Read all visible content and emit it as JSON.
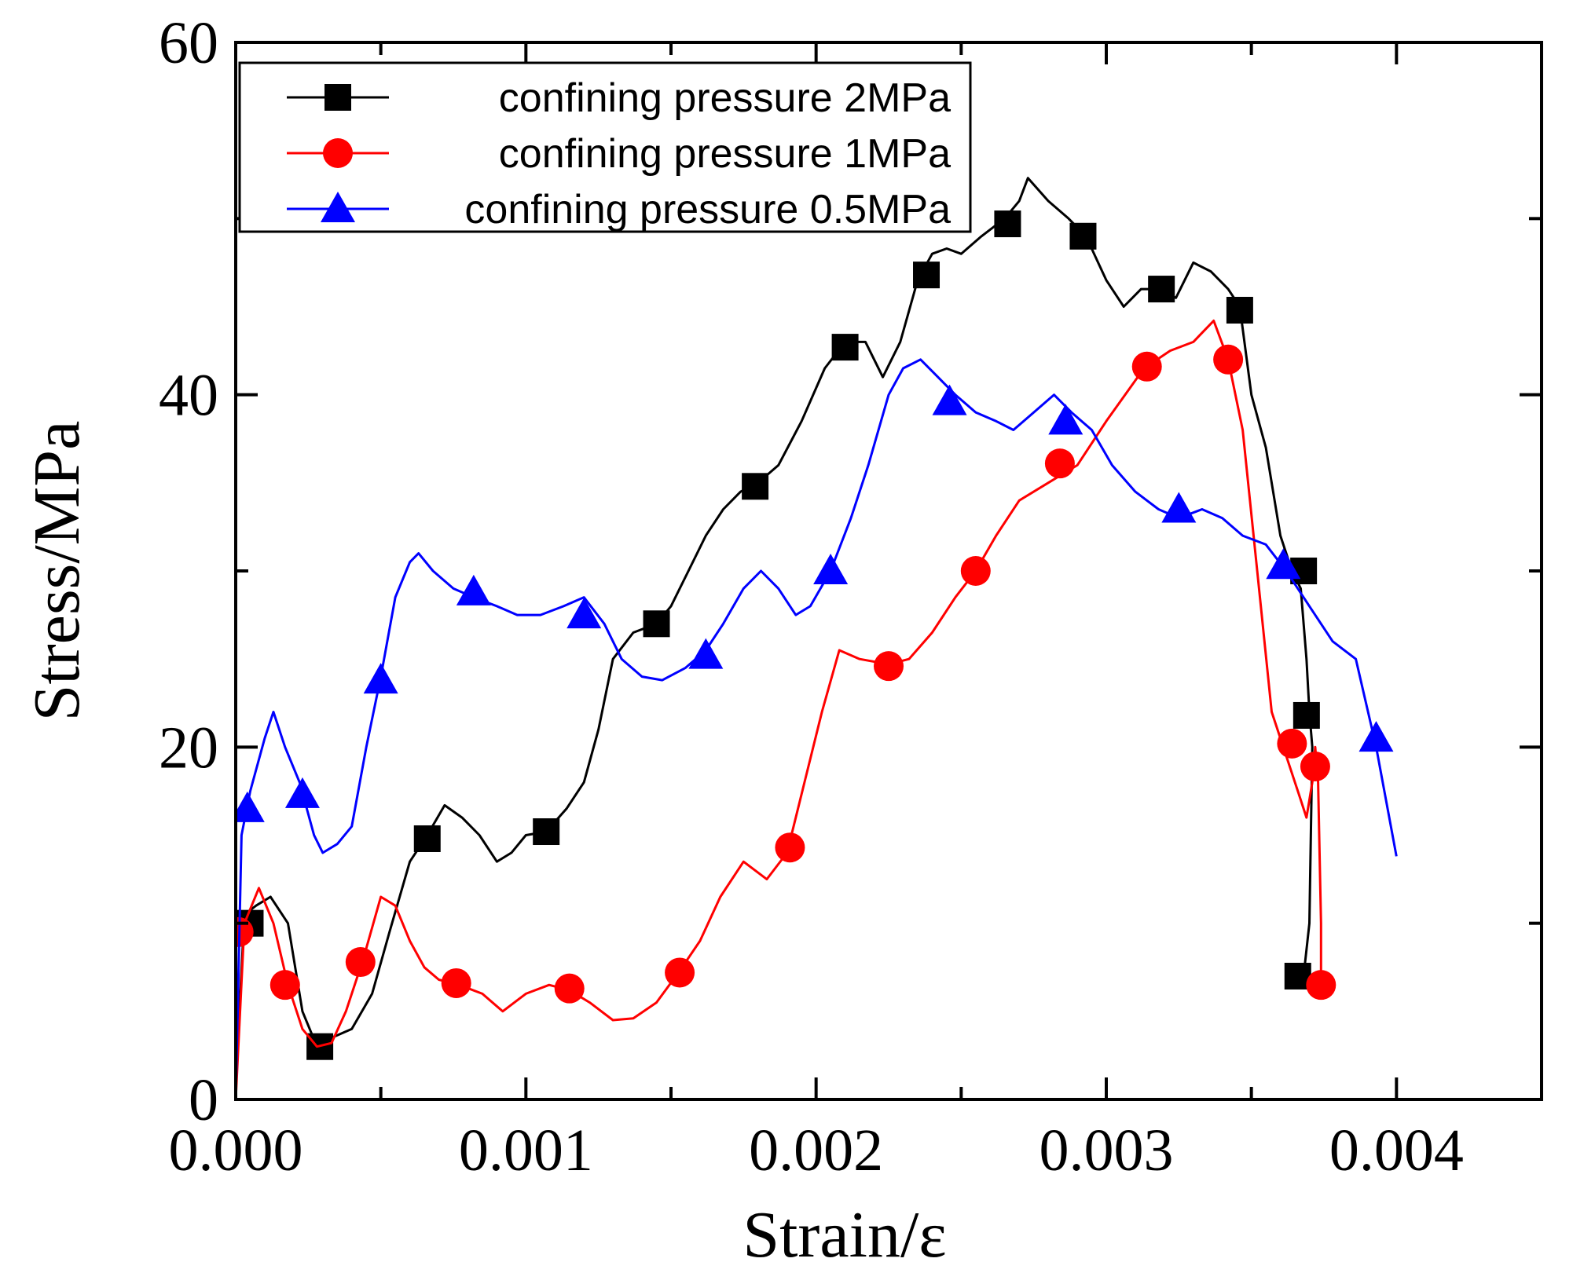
{
  "chart_data": {
    "type": "line",
    "title": "",
    "xlabel": "Strain/ε",
    "ylabel": "Stress/MPa",
    "xlim": [
      0,
      0.0045
    ],
    "ylim": [
      0,
      60
    ],
    "x_ticks": [
      0,
      0.001,
      0.002,
      0.003,
      0.004
    ],
    "x_tick_labels": [
      "0.000",
      "0.001",
      "0.002",
      "0.003",
      "0.004"
    ],
    "y_ticks": [
      0,
      20,
      40,
      60
    ],
    "y_tick_labels": [
      "0",
      "20",
      "40",
      "60"
    ],
    "grid": false,
    "legend_position": "top-left",
    "series": [
      {
        "name": "confining pressure 2MPa",
        "color": "#000000",
        "marker": "square",
        "x": [
          0.0,
          3e-05,
          7e-05,
          0.00012,
          0.00018,
          0.00023,
          0.00028,
          0.00033,
          0.0004,
          0.00047,
          0.00053,
          0.0006,
          0.00066,
          0.00072,
          0.00078,
          0.00084,
          0.0009,
          0.00095,
          0.001,
          0.00107,
          0.00114,
          0.0012,
          0.00125,
          0.0013,
          0.00137,
          0.00145,
          0.0015,
          0.00156,
          0.00162,
          0.00168,
          0.00174,
          0.0018,
          0.00187,
          0.00195,
          0.00203,
          0.0021,
          0.00217,
          0.00223,
          0.00229,
          0.00235,
          0.0024,
          0.00245,
          0.0025,
          0.00257,
          0.00265,
          0.0027,
          0.00273,
          0.0028,
          0.00287,
          0.00293,
          0.003,
          0.00306,
          0.00312,
          0.00318,
          0.00324,
          0.0033,
          0.00336,
          0.00342,
          0.00346,
          0.0035,
          0.00355,
          0.0036,
          0.00364,
          0.00367,
          0.00369,
          0.0037,
          0.00371,
          0.0037,
          0.00368,
          0.00369
        ],
        "y": [
          1.0,
          10.5,
          11.0,
          11.5,
          10.0,
          5.0,
          3.0,
          3.5,
          4.0,
          6.0,
          9.5,
          13.5,
          15.0,
          16.7,
          16.0,
          15.0,
          13.5,
          14.0,
          15.0,
          15.2,
          16.5,
          18.0,
          21.0,
          25.0,
          26.5,
          27.0,
          28.0,
          30.0,
          32.0,
          33.5,
          34.5,
          35.0,
          36.0,
          38.5,
          41.5,
          43.0,
          43.0,
          41.0,
          43.0,
          46.5,
          48.0,
          48.3,
          48.0,
          49.0,
          50.0,
          51.0,
          52.3,
          51.0,
          50.0,
          49.0,
          46.5,
          45.0,
          46.0,
          46.0,
          45.5,
          47.5,
          47.0,
          46.0,
          45.0,
          40.0,
          37.0,
          32.0,
          30.0,
          29.0,
          25.0,
          22.0,
          20.0,
          10.0,
          7.0,
          7.0
        ],
        "marker_x": [
          5e-05,
          0.00029,
          0.00066,
          0.00107,
          0.00145,
          0.00179,
          0.0021,
          0.00238,
          0.00266,
          0.00292,
          0.00319,
          0.00346,
          0.00366,
          0.00368,
          0.00369
        ],
        "marker_y": [
          10.0,
          3.0,
          14.8,
          15.2,
          27.0,
          34.8,
          42.7,
          46.8,
          49.7,
          49.0,
          46.0,
          44.8,
          7.0,
          30.0,
          21.8
        ]
      },
      {
        "name": "confining pressure 1MPa",
        "color": "#ff0000",
        "marker": "circle",
        "x": [
          0.0,
          3e-05,
          8e-05,
          0.00013,
          0.00018,
          0.00023,
          0.00028,
          0.00033,
          0.00038,
          0.00044,
          0.0005,
          0.00055,
          0.0006,
          0.00065,
          0.0007,
          0.00077,
          0.00085,
          0.00092,
          0.001,
          0.00108,
          0.00115,
          0.00122,
          0.0013,
          0.00137,
          0.00145,
          0.00153,
          0.0016,
          0.00167,
          0.00175,
          0.00183,
          0.0019,
          0.00196,
          0.00202,
          0.00208,
          0.00215,
          0.00225,
          0.00232,
          0.0024,
          0.00248,
          0.00255,
          0.00262,
          0.0027,
          0.0028,
          0.0029,
          0.003,
          0.00313,
          0.00322,
          0.0033,
          0.00337,
          0.00342,
          0.00347,
          0.00352,
          0.00357,
          0.00362,
          0.00367,
          0.00369,
          0.00371,
          0.00372,
          0.00373,
          0.00374,
          0.00374
        ],
        "y": [
          0.0,
          10.0,
          12.0,
          10.0,
          6.5,
          4.0,
          3.0,
          3.2,
          5.0,
          8.0,
          11.5,
          11.0,
          9.0,
          7.5,
          6.8,
          6.5,
          6.0,
          5.0,
          6.0,
          6.5,
          6.2,
          5.5,
          4.5,
          4.6,
          5.5,
          7.3,
          9.0,
          11.5,
          13.5,
          12.5,
          14.0,
          18.0,
          22.0,
          25.5,
          25.0,
          24.7,
          25.0,
          26.5,
          28.5,
          30.0,
          32.0,
          34.0,
          35.0,
          36.0,
          38.5,
          41.5,
          42.5,
          43.0,
          44.2,
          42.0,
          38.0,
          30.0,
          22.0,
          19.5,
          17.0,
          16.0,
          18.0,
          20.0,
          18.0,
          10.0,
          6.5
        ],
        "marker_x": [
          1e-05,
          0.00017,
          0.00043,
          0.00076,
          0.00115,
          0.00153,
          0.00191,
          0.00225,
          0.00255,
          0.00284,
          0.00314,
          0.00342,
          0.00364,
          0.00372,
          0.00374
        ],
        "marker_y": [
          9.5,
          6.5,
          7.8,
          6.6,
          6.3,
          7.2,
          14.3,
          24.6,
          30.0,
          36.1,
          41.6,
          42.0,
          20.2,
          18.9,
          6.5
        ]
      },
      {
        "name": "confining pressure 0.5MPa",
        "color": "#0000ff",
        "marker": "triangle",
        "x": [
          0.0,
          2e-05,
          5e-05,
          0.0001,
          0.00013,
          0.00017,
          0.00022,
          0.00027,
          0.0003,
          0.00035,
          0.0004,
          0.00045,
          0.0005,
          0.00055,
          0.0006,
          0.00063,
          0.00068,
          0.00075,
          0.00082,
          0.0009,
          0.00097,
          0.00105,
          0.00113,
          0.0012,
          0.00127,
          0.00133,
          0.0014,
          0.00147,
          0.00155,
          0.00162,
          0.00168,
          0.00175,
          0.00181,
          0.00187,
          0.00193,
          0.00198,
          0.00205,
          0.00212,
          0.00218,
          0.00225,
          0.0023,
          0.00236,
          0.00242,
          0.00248,
          0.00255,
          0.00262,
          0.00268,
          0.00275,
          0.00282,
          0.00288,
          0.00295,
          0.00302,
          0.0031,
          0.00318,
          0.00325,
          0.00333,
          0.0034,
          0.00347,
          0.00355,
          0.00362,
          0.0037,
          0.00378,
          0.00386,
          0.00393,
          0.004
        ],
        "y": [
          0.0,
          15.0,
          17.5,
          20.5,
          22.0,
          20.0,
          18.0,
          15.0,
          14.0,
          14.5,
          15.5,
          20.0,
          24.0,
          28.5,
          30.5,
          31.0,
          30.0,
          29.0,
          28.5,
          28.0,
          27.5,
          27.5,
          28.0,
          28.5,
          27.0,
          25.0,
          24.0,
          23.8,
          24.5,
          25.5,
          27.0,
          29.0,
          30.0,
          29.0,
          27.5,
          28.0,
          30.0,
          33.0,
          36.0,
          40.0,
          41.5,
          42.0,
          41.0,
          40.0,
          39.0,
          38.5,
          38.0,
          39.0,
          40.0,
          39.0,
          38.0,
          36.0,
          34.5,
          33.5,
          33.0,
          33.5,
          33.0,
          32.0,
          31.5,
          30.0,
          28.0,
          26.0,
          25.0,
          20.0,
          13.8
        ],
        "marker_x": [
          4e-05,
          0.00023,
          0.0005,
          0.00082,
          0.0012,
          0.00162,
          0.00205,
          0.00246,
          0.00286,
          0.00325,
          0.00361,
          0.00393
        ],
        "marker_y": [
          16.5,
          17.3,
          23.8,
          28.8,
          27.5,
          25.2,
          30.0,
          39.6,
          38.5,
          33.5,
          30.3,
          20.5
        ]
      }
    ]
  }
}
